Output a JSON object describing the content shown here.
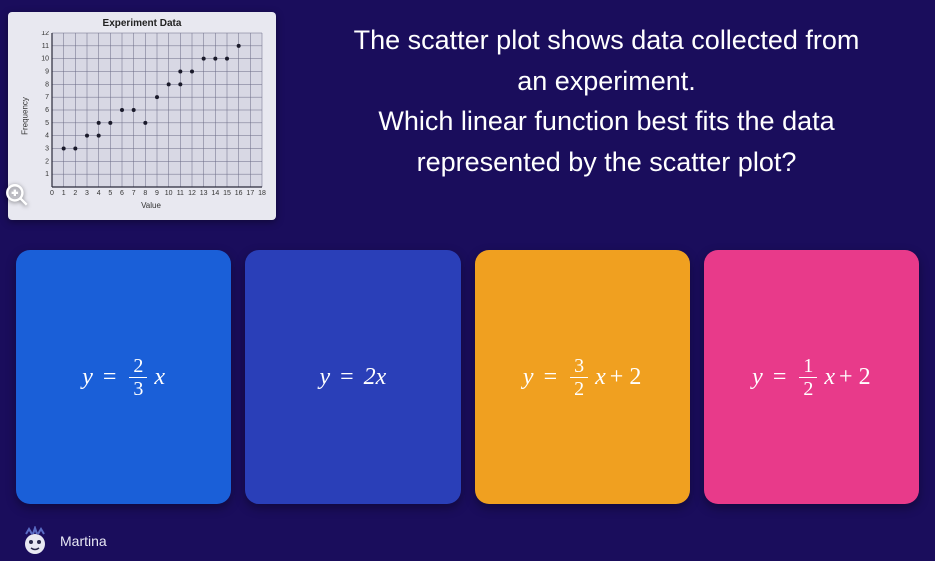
{
  "chart": {
    "title": "Experiment Data",
    "xlabel": "Value",
    "ylabel": "Frequency",
    "xlim": [
      0,
      18
    ],
    "ylim": [
      0,
      12
    ],
    "xtick_step": 1,
    "ytick_step": 1,
    "points": [
      [
        1,
        3
      ],
      [
        2,
        3
      ],
      [
        3,
        4
      ],
      [
        4,
        5
      ],
      [
        4,
        4
      ],
      [
        5,
        5
      ],
      [
        6,
        6
      ],
      [
        7,
        6
      ],
      [
        8,
        5
      ],
      [
        9,
        7
      ],
      [
        10,
        8
      ],
      [
        11,
        8
      ],
      [
        11,
        9
      ],
      [
        12,
        9
      ],
      [
        13,
        10
      ],
      [
        14,
        10
      ],
      [
        15,
        10
      ],
      [
        16,
        11
      ]
    ],
    "point_color": "#1a1a2a",
    "grid_color": "#6a6a85",
    "background_color": "#d8d8e4",
    "axis_color": "#2a2a3a",
    "label_fontsize": 8,
    "tick_fontsize": 7
  },
  "question": {
    "line1": "The scatter plot shows data collected from",
    "line2": "an experiment.",
    "line3": "Which linear function best fits the data",
    "line4": "represented by the scatter plot?"
  },
  "answers": [
    {
      "color": "#1a5fd8",
      "expr": {
        "lhs": "y",
        "frac": [
          2,
          3
        ],
        "tail": "x",
        "const": ""
      }
    },
    {
      "color": "#2a3fb8",
      "expr": {
        "lhs": "y",
        "frac": null,
        "tail": "2x",
        "const": ""
      }
    },
    {
      "color": "#f0a020",
      "expr": {
        "lhs": "y",
        "frac": [
          3,
          2
        ],
        "tail": "x",
        "const": " + 2"
      }
    },
    {
      "color": "#e83a8a",
      "expr": {
        "lhs": "y",
        "frac": [
          1,
          2
        ],
        "tail": "x",
        "const": " + 2"
      }
    }
  ],
  "player": {
    "name": "Martina"
  },
  "icons": {
    "zoom": "zoom-in"
  }
}
